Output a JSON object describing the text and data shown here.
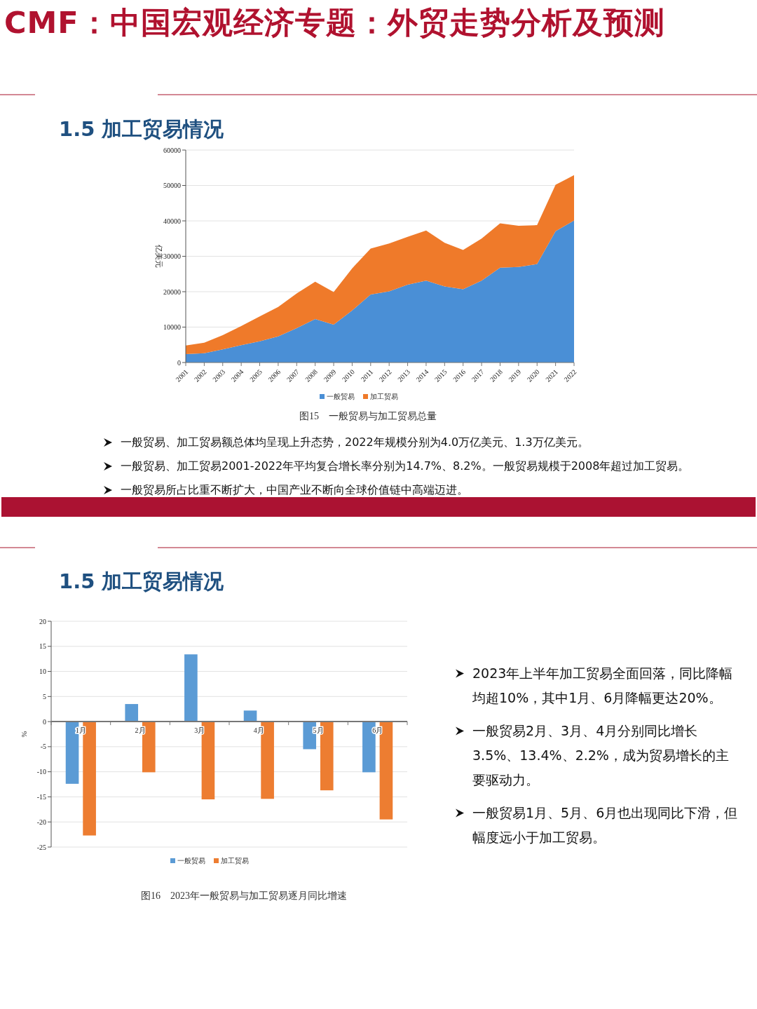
{
  "chart_data": [
    {
      "type": "area",
      "title": "CMF：中国宏观经济专题：外贸走势分析及预测",
      "subtitle": "1.5 加工贸易情况",
      "ylabel": "亿美元",
      "stacked": true,
      "categories": [
        "2001",
        "2002",
        "2003",
        "2004",
        "2005",
        "2006",
        "2007",
        "2008",
        "2009",
        "2010",
        "2011",
        "2012",
        "2013",
        "2014",
        "2015",
        "2016",
        "2017",
        "2018",
        "2019",
        "2020",
        "2021",
        "2022"
      ],
      "series": [
        {
          "name": "一般贸易",
          "color": "#4a8fd6",
          "values": [
            2400,
            2600,
            3700,
            4900,
            6000,
            7400,
            9700,
            12300,
            10700,
            14700,
            19200,
            20100,
            22000,
            23100,
            21500,
            20700,
            23100,
            26800,
            27000,
            27800,
            37100,
            40100
          ]
        },
        {
          "name": "加工贸易",
          "color": "#ef7a2a",
          "values": [
            2400,
            3000,
            4000,
            5400,
            7000,
            8300,
            9800,
            10500,
            9200,
            11900,
            13000,
            13500,
            13500,
            14200,
            12300,
            11100,
            11900,
            12500,
            11600,
            11000,
            13100,
            12800
          ]
        }
      ],
      "ylim": [
        0,
        60000
      ],
      "yticks": [
        0,
        10000,
        20000,
        30000,
        40000,
        50000,
        60000
      ],
      "grid": "y",
      "legend": "bottom",
      "annotations": [
        "图15　一般贸易与加工贸易总量",
        "一般贸易、加工贸易额总体均呈现上升态势，2022年规模分别为4.0万亿美元、1.3万亿美元。",
        "一般贸易、加工贸易2001-2022年平均复合增长率分别为14.7%、8.2%。一般贸易规模于2008年超过加工贸易。",
        "一般贸易所占比重不断扩大，中国产业不断向全球价值链中高端迈进。"
      ]
    },
    {
      "type": "bar",
      "subtitle": "1.5 加工贸易情况",
      "ylabel": "%",
      "categories": [
        "1月",
        "2月",
        "3月",
        "4月",
        "5月",
        "6月"
      ],
      "series": [
        {
          "name": "一般贸易",
          "color": "#5b9bd5",
          "values": [
            -12.4,
            3.5,
            13.4,
            2.2,
            -5.5,
            -10.1
          ]
        },
        {
          "name": "加工贸易",
          "color": "#ed7d31",
          "values": [
            -22.7,
            -10.1,
            -15.5,
            -15.4,
            -13.7,
            -19.5
          ]
        }
      ],
      "ylim": [
        -25,
        20
      ],
      "yticks": [
        -25,
        -20,
        -15,
        -10,
        -5,
        0,
        5,
        10,
        15,
        20
      ],
      "grid": "y",
      "legend": "bottom",
      "annotations": [
        "图16　2023年一般贸易与加工贸易逐月同比增速",
        "2023年上半年加工贸易全面回落，同比降幅均超10%，其中1月、6月降幅更达20%。",
        "一般贸易2月、3月、4月分别同比增长3.5%、13.4%、2.2%，成为贸易增长的主要驱动力。",
        "一般贸易1月、5月、6月也出现同比下滑，但幅度远小于加工贸易。"
      ]
    }
  ]
}
